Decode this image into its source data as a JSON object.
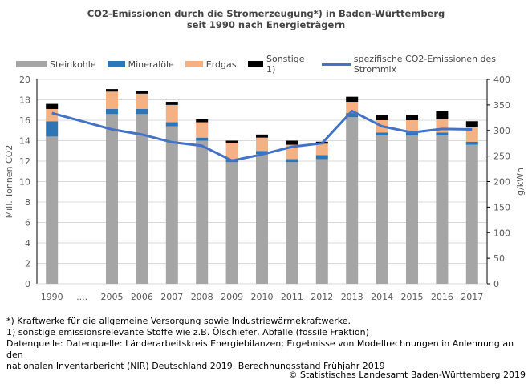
{
  "chart_data": {
    "type": "bar",
    "title": "CO2-Emissionen durch die Stromerzeugung*) in Baden-Württemberg",
    "subtitle": "seit 1990 nach Energieträgern",
    "categories": [
      "1990",
      "....",
      "2005",
      "2006",
      "2007",
      "2008",
      "2009",
      "2010",
      "2011",
      "2012",
      "2013",
      "2014",
      "2015",
      "2016",
      "2017"
    ],
    "ylabel": "Mill. Tonnen CO2",
    "ylim": [
      0,
      20
    ],
    "yticks": [
      0,
      2,
      4,
      6,
      8,
      10,
      12,
      14,
      16,
      18,
      20
    ],
    "y2label": "g/kWh",
    "y2lim": [
      0,
      400
    ],
    "y2ticks": [
      0,
      50,
      100,
      150,
      200,
      250,
      300,
      350,
      400
    ],
    "grid": true,
    "legend": "top",
    "series": [
      {
        "name": "Steinkohle",
        "color": "#a5a5a5",
        "values": [
          14.4,
          null,
          16.6,
          16.6,
          15.4,
          14.0,
          11.9,
          12.7,
          11.9,
          12.2,
          16.3,
          14.5,
          14.5,
          14.5,
          13.6
        ]
      },
      {
        "name": "Mineralöle",
        "color": "#2e75b6",
        "values": [
          1.5,
          null,
          0.5,
          0.5,
          0.4,
          0.3,
          0.3,
          0.3,
          0.3,
          0.4,
          0.4,
          0.3,
          0.3,
          0.3,
          0.3
        ]
      },
      {
        "name": "Erdgas",
        "color": "#f4b183",
        "values": [
          1.2,
          null,
          1.7,
          1.5,
          1.7,
          1.5,
          1.6,
          1.3,
          1.4,
          1.1,
          1.1,
          1.2,
          1.2,
          1.3,
          1.4
        ]
      },
      {
        "name": "Sonstige 1)",
        "color": "#000000",
        "values": [
          0.5,
          null,
          0.25,
          0.3,
          0.3,
          0.3,
          0.2,
          0.3,
          0.4,
          0.2,
          0.5,
          0.5,
          0.5,
          0.8,
          0.6
        ]
      }
    ],
    "line": {
      "name": "spezifische CO2-Emissionen des Strommix",
      "color": "#4472c4",
      "axis": "right",
      "values": [
        334,
        null,
        302,
        292,
        277,
        270,
        241,
        253,
        268,
        275,
        338,
        308,
        296,
        303,
        302
      ]
    }
  },
  "notes": [
    "*) Kraftwerke für die allgemeine Versorgung sowie Industriewärmekraftwerke.",
    "1) sonstige emissionsrelevante Stoffe wie z.B. Ölschiefer, Abfälle (fossile Fraktion)",
    "Datenquelle: Datenquelle: Länderarbeitskreis Energiebilanzen; Ergebnisse von Modellrechnungen in Anlehnung an den",
    "nationalen Inventarbericht (NIR) Deutschland 2019.  Berechnungsstand Frühjahr 2019"
  ],
  "copyright": "© Statistisches Landesamt Baden-Württemberg 2019"
}
